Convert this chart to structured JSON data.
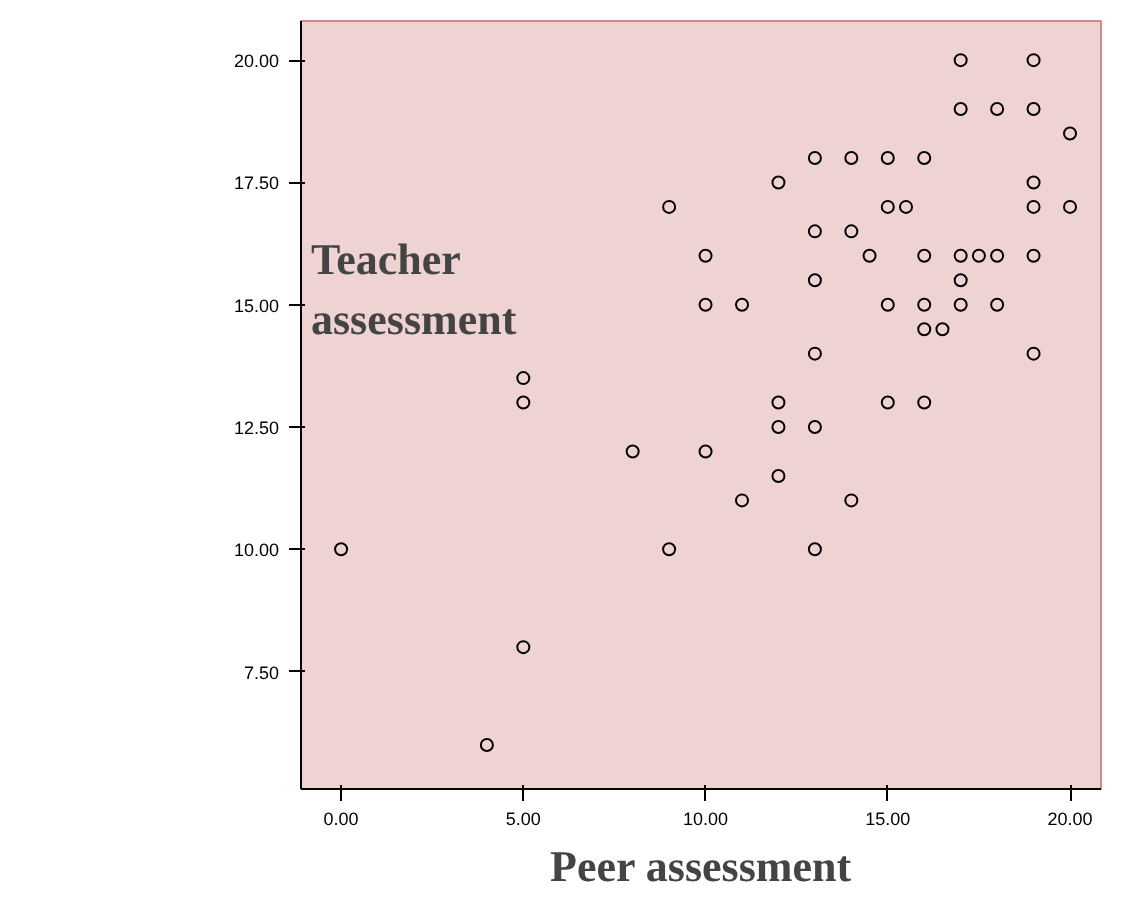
{
  "chart_data": {
    "type": "scatter",
    "xlabel": "Peer assessment",
    "ylabel": "Teacher assessment",
    "marker": "circle",
    "grid": false,
    "xlim": [
      -1.1,
      20.85
    ],
    "ylim": [
      5.1,
      20.8
    ],
    "xticks": [
      {
        "value": 0,
        "label": "0.00"
      },
      {
        "value": 5,
        "label": "5.00"
      },
      {
        "value": 10,
        "label": "10.00"
      },
      {
        "value": 15,
        "label": "15.00"
      },
      {
        "value": 20,
        "label": "20.00"
      }
    ],
    "yticks": [
      {
        "value": 7.5,
        "label": "7.50"
      },
      {
        "value": 10,
        "label": "10.00"
      },
      {
        "value": 12.5,
        "label": "12.50"
      },
      {
        "value": 15,
        "label": "15.00"
      },
      {
        "value": 17.5,
        "label": "17.50"
      },
      {
        "value": 20,
        "label": "20.00"
      }
    ],
    "series": [
      {
        "color": "#000000",
        "x": [
          0,
          4,
          5,
          5,
          5,
          8,
          9,
          9,
          10,
          10,
          10,
          11,
          11,
          12,
          12,
          12,
          12,
          13,
          13,
          13,
          13,
          13,
          13,
          14,
          14,
          14,
          14.5,
          15,
          15,
          15,
          15,
          15.5,
          16,
          16,
          16,
          16,
          16,
          16.5,
          17,
          17,
          17,
          17,
          17,
          17.5,
          18,
          18,
          18,
          19,
          19,
          19,
          19,
          19,
          19,
          20,
          20
        ],
        "values": [
          10,
          6,
          8,
          13,
          13.5,
          12,
          10,
          17,
          16,
          15,
          12,
          15,
          11,
          17.5,
          13,
          12.5,
          11.5,
          18,
          16.5,
          15.5,
          14,
          12.5,
          10,
          16.5,
          18,
          11,
          16,
          18,
          17,
          15,
          13,
          17,
          18,
          16,
          15,
          14.5,
          13,
          14.5,
          20,
          19,
          16,
          15.5,
          15,
          16,
          19,
          16,
          15,
          20,
          19,
          17.5,
          17,
          16,
          14,
          18.5,
          17
        ]
      }
    ]
  }
}
